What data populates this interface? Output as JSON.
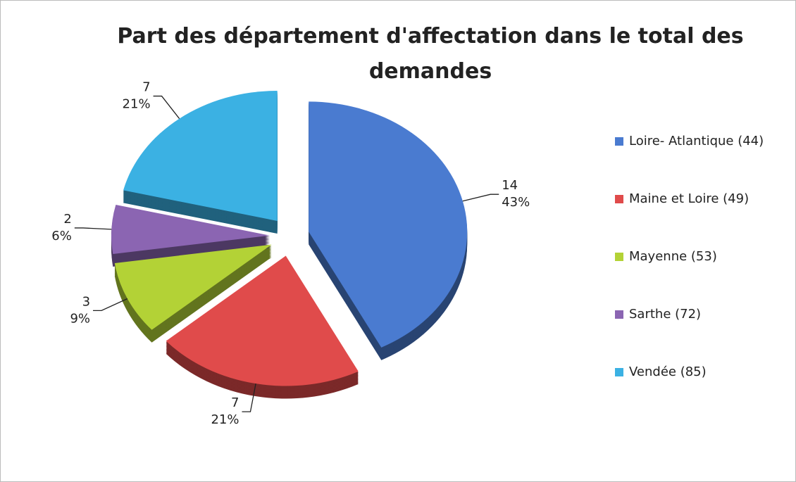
{
  "chart_data": {
    "type": "pie",
    "title": "Part des département d'affectation dans le total des demandes",
    "categories": [
      "Loire- Atlantique (44)",
      "Maine et Loire (49)",
      "Mayenne (53)",
      "Sarthe (72)",
      "Vendée (85)"
    ],
    "values": [
      14,
      7,
      3,
      2,
      7
    ],
    "percent_labels": [
      "43%",
      "21%",
      "9%",
      "6%",
      "21%"
    ],
    "colors": [
      "#4a7bd0",
      "#e04b4b",
      "#b3d236",
      "#8b65b2",
      "#3bb1e3"
    ],
    "legend": "right"
  }
}
